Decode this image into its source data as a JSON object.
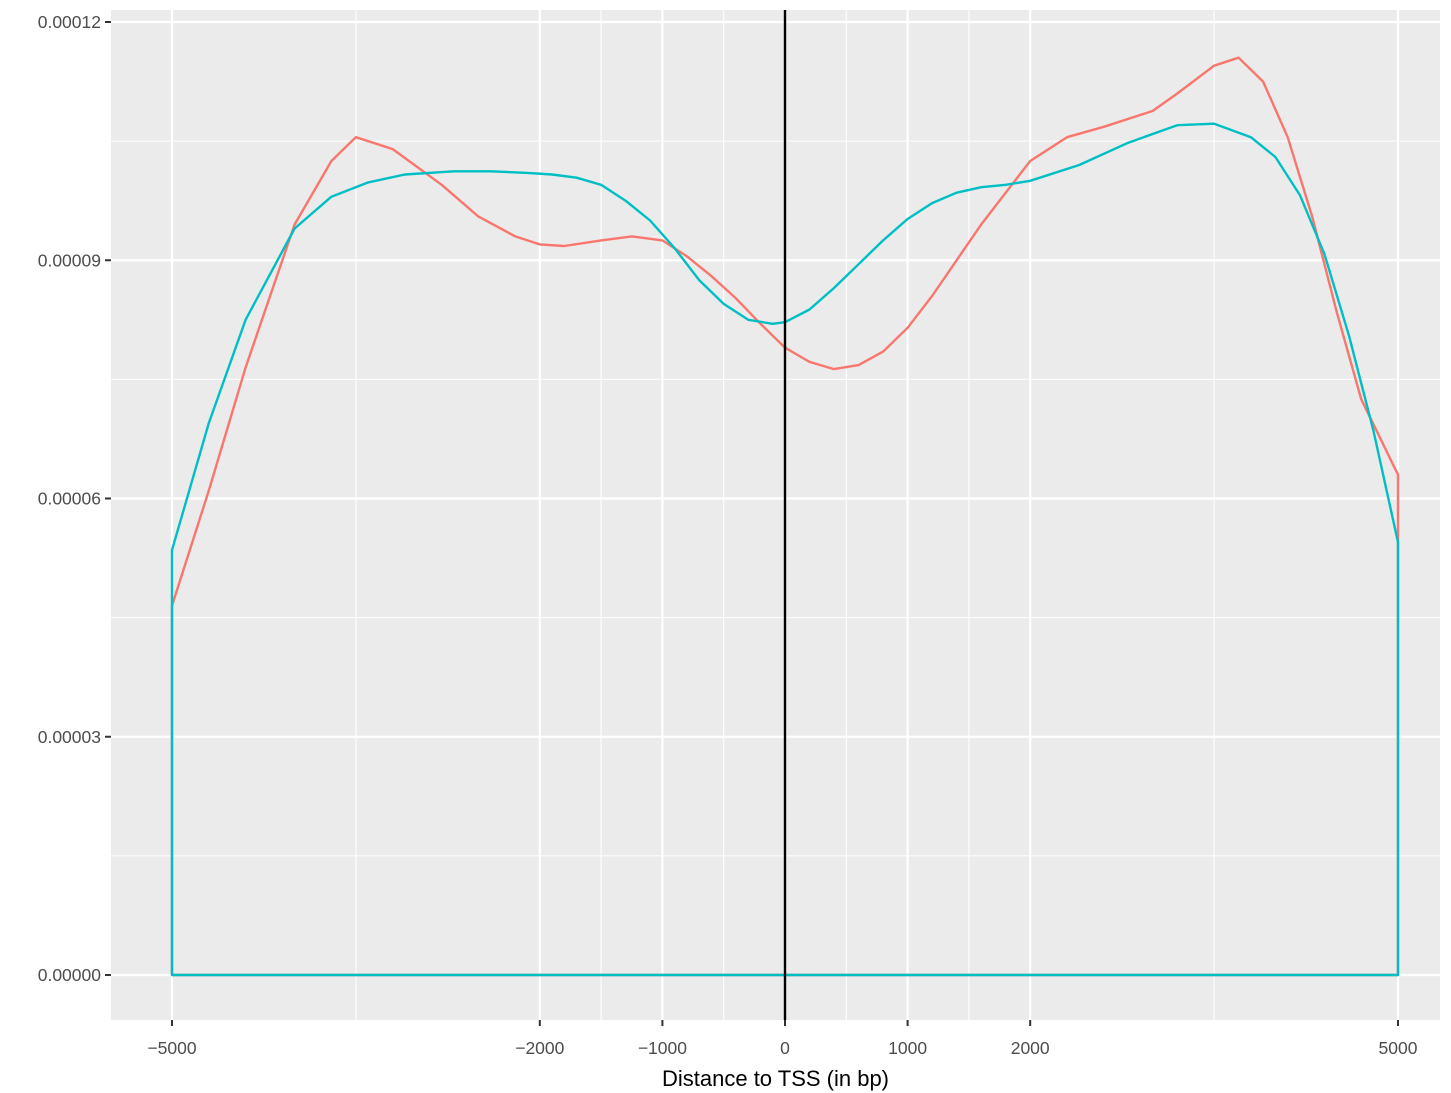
{
  "chart_data": {
    "type": "line",
    "title": "",
    "xlabel": "Distance to TSS (in bp)",
    "ylabel": "",
    "xlim": [
      -5500,
      5500
    ],
    "ylim": [
      -6e-06,
      0.000121
    ],
    "x_tick_labels": [
      {
        "value": -5000,
        "label": "−5000"
      },
      {
        "value": -2000,
        "label": "−2000"
      },
      {
        "value": -1000,
        "label": "−1000"
      },
      {
        "value": 0,
        "label": "0"
      },
      {
        "value": 1000,
        "label": "1000"
      },
      {
        "value": 2000,
        "label": "2000"
      },
      {
        "value": 5000,
        "label": "5000"
      }
    ],
    "x_minor_grid": [
      -3500,
      -1500,
      -500,
      500,
      1500,
      3500
    ],
    "y_tick_labels": [
      {
        "value": 0,
        "label": "0.00000"
      },
      {
        "value": 3e-05,
        "label": "0.00003"
      },
      {
        "value": 6e-05,
        "label": "0.00006"
      },
      {
        "value": 9e-05,
        "label": "0.00009"
      },
      {
        "value": 0.00012,
        "label": "0.00012"
      }
    ],
    "y_minor_grid": [
      1.5e-05,
      4.5e-05,
      7.5e-05,
      0.000105
    ],
    "vline": {
      "x": 0,
      "color": "#000000"
    },
    "grid": true,
    "legend": "none",
    "colors": {
      "panel": "#ebebeb",
      "grid": "#ffffff",
      "ticks": "#333333",
      "tick_text": "#4d4d4d"
    },
    "series": [
      {
        "color": "#f8766d",
        "x": [
          -5000,
          -4700,
          -4400,
          -4000,
          -3700,
          -3500,
          -3200,
          -2800,
          -2500,
          -2200,
          -2000,
          -1800,
          -1500,
          -1250,
          -1000,
          -800,
          -600,
          -400,
          -200,
          0,
          200,
          400,
          600,
          800,
          1000,
          1200,
          1400,
          1600,
          1800,
          2000,
          2300,
          2600,
          3000,
          3200,
          3500,
          3700,
          3900,
          4100,
          4300,
          4500,
          4700,
          5000
        ],
        "y": [
          4.65e-05,
          6.1e-05,
          7.65e-05,
          9.45e-05,
          0.0001025,
          0.0001055,
          0.000104,
          9.95e-05,
          9.55e-05,
          9.3e-05,
          9.2e-05,
          9.18e-05,
          9.25e-05,
          9.3e-05,
          9.25e-05,
          9.05e-05,
          8.8e-05,
          8.52e-05,
          8.2e-05,
          7.9e-05,
          7.72e-05,
          7.63e-05,
          7.68e-05,
          7.85e-05,
          8.15e-05,
          8.55e-05,
          9e-05,
          9.45e-05,
          9.85e-05,
          0.0001025,
          0.0001055,
          0.0001068,
          0.0001088,
          0.000111,
          0.0001145,
          0.0001155,
          0.0001125,
          0.0001055,
          9.55e-05,
          8.35e-05,
          7.25e-05,
          6.3e-05
        ]
      },
      {
        "color": "#00bfc4",
        "x": [
          -5000,
          -4700,
          -4400,
          -4000,
          -3700,
          -3400,
          -3100,
          -2700,
          -2400,
          -2100,
          -1900,
          -1700,
          -1500,
          -1300,
          -1100,
          -900,
          -700,
          -500,
          -300,
          -100,
          0,
          200,
          400,
          600,
          800,
          1000,
          1200,
          1400,
          1600,
          1800,
          2000,
          2400,
          2800,
          3200,
          3500,
          3800,
          4000,
          4200,
          4400,
          4600,
          4800,
          5000
        ],
        "y": [
          5.35e-05,
          6.95e-05,
          8.25e-05,
          9.4e-05,
          9.8e-05,
          9.98e-05,
          0.0001008,
          0.0001012,
          0.0001012,
          0.000101,
          0.0001008,
          0.0001004,
          9.95e-05,
          9.75e-05,
          9.5e-05,
          9.15e-05,
          8.75e-05,
          8.45e-05,
          8.25e-05,
          8.2e-05,
          8.22e-05,
          8.38e-05,
          8.65e-05,
          8.95e-05,
          9.25e-05,
          9.52e-05,
          9.72e-05,
          9.85e-05,
          9.92e-05,
          9.95e-05,
          0.0001,
          0.000102,
          0.0001048,
          0.000107,
          0.0001072,
          0.0001055,
          0.000103,
          9.82e-05,
          9.08e-05,
          8.05e-05,
          6.85e-05,
          5.45e-05
        ]
      }
    ]
  }
}
